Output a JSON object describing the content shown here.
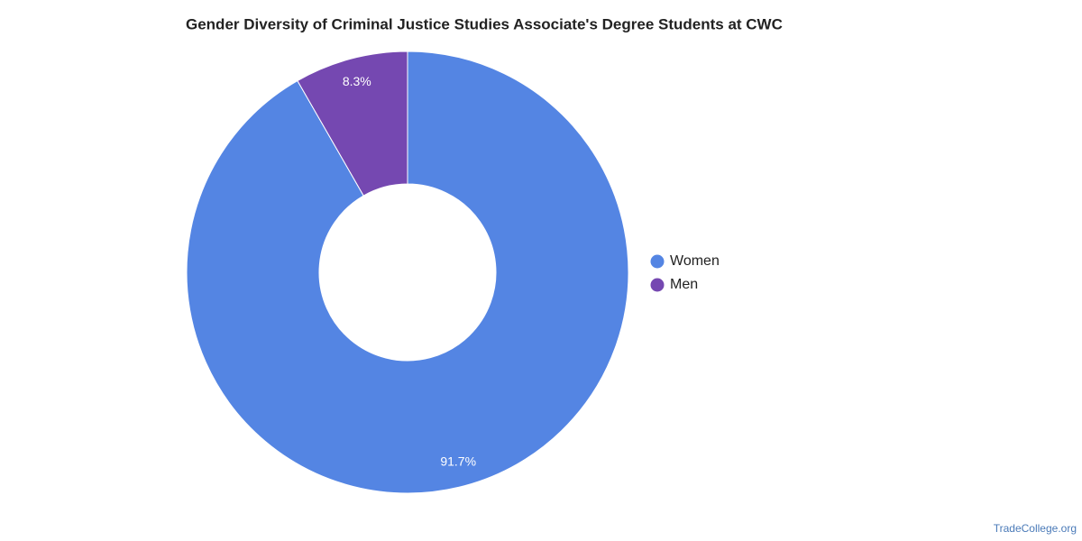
{
  "chart_data": {
    "type": "donut",
    "title": "Gender Diversity of Criminal Justice Studies Associate's Degree Students at CWC",
    "categories": [
      "Women",
      "Men"
    ],
    "values": [
      91.7,
      8.3
    ],
    "value_labels": [
      "91.7%",
      "8.3%"
    ],
    "colors": [
      "#5485e3",
      "#7548b1"
    ],
    "legend": "right",
    "source": "TradeCollege.org"
  }
}
